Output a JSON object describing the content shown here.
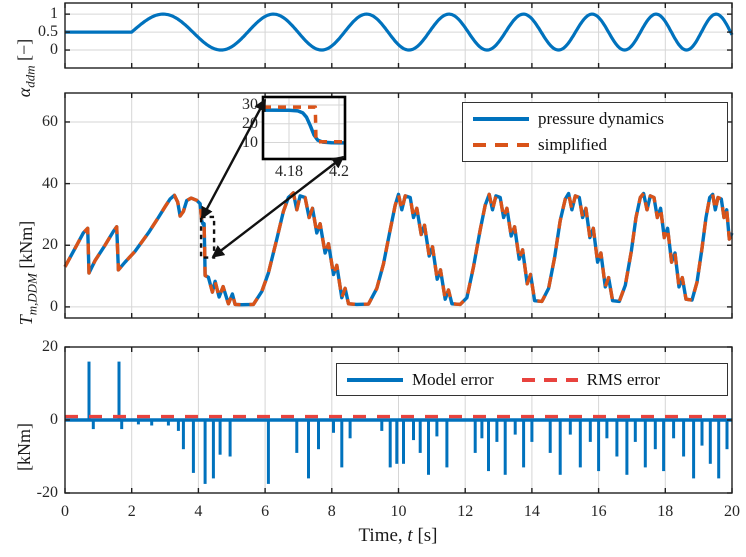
{
  "colors": {
    "blue": "#0072bd",
    "orange": "#d95319",
    "red": "#e8433e",
    "grid": "#d6d6d6",
    "frame": "#1f1f1f",
    "text": "#262626"
  },
  "labels": {
    "top_symbol": "α",
    "top_sub": "ddm",
    "top_unit": " [−]",
    "mid_symbol": "T",
    "mid_sub": "m,DDM",
    "mid_unit": " [kNm]",
    "bot_unit": "[kNm]",
    "x_pre": "Time, ",
    "x_var": "t",
    "x_unit": " [s]"
  },
  "chart_data": [
    {
      "id": "alpha",
      "type": "line",
      "title": "",
      "ylabel": "alpha_ddm [-]",
      "xlabel": "",
      "xlim": [
        0,
        20
      ],
      "ylim": [
        -0.5,
        1.31
      ],
      "grid": true,
      "xticks": [
        0,
        2,
        4,
        6,
        8,
        10,
        12,
        14,
        16,
        18,
        20
      ],
      "yticks": [
        {
          "v": 0,
          "label": "0"
        },
        {
          "v": 0.5,
          "label": "0.5"
        },
        {
          "v": 1,
          "label": "1"
        }
      ],
      "series": [
        {
          "name": "alpha_ddm",
          "style": "solid",
          "color_key": "blue",
          "model": "flat-then-chirp",
          "flat_value": 0.5,
          "flat_until": 2,
          "chirp": {
            "offset": 0.5,
            "amp": 0.5,
            "phase_a": 1.6085,
            "phase_b": 0.05655,
            "t_start": 2,
            "t_end": 20
          },
          "peaks_t": [
            3.35,
            6.55,
            9.35,
            11.75,
            13.9,
            15.9,
            17.8,
            19.5
          ],
          "peak_value": 1,
          "troughs_t": [
            4.95,
            8.0,
            10.55,
            12.85,
            14.95,
            16.85,
            18.7
          ],
          "trough_value": 0
        }
      ]
    },
    {
      "id": "torque",
      "type": "line",
      "title": "",
      "ylabel": "T_m,DDM [kNm]",
      "xlabel": "",
      "xlim": [
        0,
        20
      ],
      "ylim": [
        -3.6,
        69.4
      ],
      "grid": true,
      "legend_position": "northeast",
      "xticks": [
        0,
        2,
        4,
        6,
        8,
        10,
        12,
        14,
        16,
        18,
        20
      ],
      "yticks": [
        {
          "v": 0,
          "label": "0"
        },
        {
          "v": 20,
          "label": "20"
        },
        {
          "v": 40,
          "label": "40"
        },
        {
          "v": 60,
          "label": "60"
        }
      ],
      "series": [
        {
          "name": "pressure dynamics",
          "style": "solid",
          "color_key": "blue",
          "points": [
            [
              0,
              13
            ],
            [
              0.35,
              20
            ],
            [
              0.55,
              24
            ],
            [
              0.68,
              25.5
            ],
            [
              0.72,
              11
            ],
            [
              0.9,
              15
            ],
            [
              1.2,
              20
            ],
            [
              1.45,
              24.5
            ],
            [
              1.55,
              26
            ],
            [
              1.6,
              12
            ],
            [
              1.8,
              14.5
            ],
            [
              2.1,
              18
            ],
            [
              2.5,
              24
            ],
            [
              2.8,
              29
            ],
            [
              3.0,
              32.5
            ],
            [
              3.15,
              35
            ],
            [
              3.28,
              36.2
            ],
            [
              3.38,
              34
            ],
            [
              3.45,
              29.5
            ],
            [
              3.55,
              31
            ],
            [
              3.65,
              34.5
            ],
            [
              3.78,
              35.3
            ],
            [
              3.95,
              34.6
            ],
            [
              4.05,
              33.5
            ],
            [
              4.1,
              28
            ],
            [
              4.14,
              26.8
            ],
            [
              4.17,
              27
            ],
            [
              4.188,
              18
            ],
            [
              4.2,
              10.2
            ],
            [
              4.3,
              9.6
            ],
            [
              4.42,
              4.8
            ],
            [
              4.5,
              8.3
            ],
            [
              4.62,
              3.2
            ],
            [
              4.74,
              6.6
            ],
            [
              4.9,
              1
            ],
            [
              5.02,
              4.2
            ],
            [
              5.1,
              0.8
            ],
            [
              5.3,
              0.7
            ],
            [
              5.65,
              0.8
            ],
            [
              5.9,
              5
            ],
            [
              6.1,
              11
            ],
            [
              6.35,
              22
            ],
            [
              6.55,
              31
            ],
            [
              6.7,
              35.5
            ],
            [
              6.85,
              37
            ],
            [
              6.95,
              31.5
            ],
            [
              7.05,
              36
            ],
            [
              7.2,
              35.5
            ],
            [
              7.32,
              29
            ],
            [
              7.42,
              32
            ],
            [
              7.55,
              24
            ],
            [
              7.65,
              27
            ],
            [
              7.8,
              17.5
            ],
            [
              7.9,
              20.5
            ],
            [
              8.05,
              10.5
            ],
            [
              8.15,
              13.5
            ],
            [
              8.3,
              3
            ],
            [
              8.4,
              6
            ],
            [
              8.5,
              1
            ],
            [
              8.75,
              0.8
            ],
            [
              9.1,
              0.9
            ],
            [
              9.35,
              6
            ],
            [
              9.55,
              14
            ],
            [
              9.75,
              25
            ],
            [
              9.9,
              33
            ],
            [
              10.0,
              36.5
            ],
            [
              10.1,
              31.5
            ],
            [
              10.2,
              36
            ],
            [
              10.35,
              35.5
            ],
            [
              10.45,
              29
            ],
            [
              10.55,
              32
            ],
            [
              10.68,
              23.5
            ],
            [
              10.78,
              26.5
            ],
            [
              10.92,
              16.5
            ],
            [
              11.02,
              19.5
            ],
            [
              11.16,
              9
            ],
            [
              11.26,
              12
            ],
            [
              11.4,
              2.5
            ],
            [
              11.5,
              5.5
            ],
            [
              11.6,
              1
            ],
            [
              11.85,
              0.8
            ],
            [
              12.05,
              3
            ],
            [
              12.25,
              13
            ],
            [
              12.45,
              25
            ],
            [
              12.6,
              33
            ],
            [
              12.72,
              36.5
            ],
            [
              12.82,
              31.5
            ],
            [
              12.92,
              36
            ],
            [
              13.05,
              35.5
            ],
            [
              13.15,
              29
            ],
            [
              13.25,
              32
            ],
            [
              13.38,
              23
            ],
            [
              13.48,
              26
            ],
            [
              13.62,
              15.5
            ],
            [
              13.72,
              18.5
            ],
            [
              13.86,
              7.5
            ],
            [
              13.96,
              10.5
            ],
            [
              14.08,
              2
            ],
            [
              14.3,
              1.8
            ],
            [
              14.5,
              6
            ],
            [
              14.68,
              16
            ],
            [
              14.85,
              28
            ],
            [
              15.0,
              35
            ],
            [
              15.1,
              36.8
            ],
            [
              15.2,
              31.5
            ],
            [
              15.3,
              36
            ],
            [
              15.42,
              35.5
            ],
            [
              15.52,
              29
            ],
            [
              15.62,
              32
            ],
            [
              15.74,
              22.5
            ],
            [
              15.84,
              25.5
            ],
            [
              15.97,
              14.5
            ],
            [
              16.07,
              17.5
            ],
            [
              16.2,
              6.5
            ],
            [
              16.3,
              9.5
            ],
            [
              16.42,
              2
            ],
            [
              16.62,
              1.8
            ],
            [
              16.8,
              7
            ],
            [
              16.98,
              18
            ],
            [
              17.12,
              29
            ],
            [
              17.25,
              35.5
            ],
            [
              17.35,
              36.8
            ],
            [
              17.45,
              31.5
            ],
            [
              17.55,
              36
            ],
            [
              17.66,
              35.5
            ],
            [
              17.76,
              29
            ],
            [
              17.86,
              32
            ],
            [
              17.97,
              22.5
            ],
            [
              18.07,
              25.5
            ],
            [
              18.19,
              14.5
            ],
            [
              18.29,
              17.5
            ],
            [
              18.41,
              6.5
            ],
            [
              18.51,
              9.5
            ],
            [
              18.62,
              2.5
            ],
            [
              18.8,
              2.2
            ],
            [
              18.95,
              8
            ],
            [
              19.1,
              19
            ],
            [
              19.22,
              29
            ],
            [
              19.33,
              35.5
            ],
            [
              19.42,
              36.5
            ],
            [
              19.5,
              31.5
            ],
            [
              19.58,
              35.5
            ],
            [
              19.68,
              35
            ],
            [
              19.76,
              29
            ],
            [
              19.84,
              31.5
            ],
            [
              19.92,
              22
            ],
            [
              20,
              24
            ]
          ]
        },
        {
          "name": "simplified",
          "style": "dashed",
          "color_key": "orange",
          "overlaps_series": "pressure dynamics"
        }
      ],
      "callout_rect": {
        "t0": 4.08,
        "t1": 4.47,
        "T0": 16,
        "T1": 29.2
      },
      "inset": {
        "xlim": [
          4.1696,
          4.2024
        ],
        "ylim": [
          1.2,
          34.3
        ],
        "xticks": [
          {
            "v": 4.18,
            "label": "4.18"
          },
          {
            "v": 4.2,
            "label": "4.2"
          }
        ],
        "yticks": [
          {
            "v": 10,
            "label": "10"
          },
          {
            "v": 20,
            "label": "20"
          },
          {
            "v": 30,
            "label": "30"
          }
        ],
        "series": [
          {
            "name": "pressure dynamics",
            "style": "solid",
            "color_key": "blue",
            "points": [
              [
                4.1696,
                27.3
              ],
              [
                4.18,
                27.2
              ],
              [
                4.1835,
                26.9
              ],
              [
                4.1855,
                25.8
              ],
              [
                4.187,
                23.5
              ],
              [
                4.1885,
                19
              ],
              [
                4.19,
                14
              ],
              [
                4.1915,
                11.3
              ],
              [
                4.1935,
                10.2
              ],
              [
                4.197,
                9.9
              ],
              [
                4.2024,
                9.8
              ]
            ]
          },
          {
            "name": "simplified",
            "style": "dashed",
            "color_key": "orange",
            "points": [
              [
                4.1696,
                28.9
              ],
              [
                4.1905,
                28.9
              ],
              [
                4.1908,
                10.4
              ],
              [
                4.2024,
                10.4
              ]
            ]
          }
        ]
      }
    },
    {
      "id": "error",
      "type": "line",
      "title": "",
      "ylabel": "[kNm]",
      "xlabel": "Time, t [s]",
      "xlim": [
        0,
        20
      ],
      "ylim": [
        -20,
        20
      ],
      "grid": true,
      "legend_position": "northeast",
      "xticks": [
        0,
        2,
        4,
        6,
        8,
        10,
        12,
        14,
        16,
        18,
        20
      ],
      "yticks": [
        {
          "v": -20,
          "label": "-20"
        },
        {
          "v": 0,
          "label": "0"
        },
        {
          "v": 20,
          "label": "20"
        }
      ],
      "series": [
        {
          "name": "Model error",
          "style": "solid",
          "color_key": "blue",
          "baseline": 0,
          "spikes": [
            [
              0.72,
              16
            ],
            [
              0.85,
              -2.5
            ],
            [
              1.62,
              16
            ],
            [
              1.7,
              -2.5
            ],
            [
              2.2,
              -1.2
            ],
            [
              2.6,
              -1.5
            ],
            [
              3.1,
              -1.5
            ],
            [
              3.4,
              -3
            ],
            [
              3.55,
              -8
            ],
            [
              3.85,
              -14.5
            ],
            [
              4.2,
              -17.5
            ],
            [
              4.45,
              -16
            ],
            [
              4.65,
              -9.5
            ],
            [
              4.95,
              -10
            ],
            [
              6.1,
              -17.5
            ],
            [
              6.95,
              -9
            ],
            [
              7.3,
              -16
            ],
            [
              7.6,
              -8
            ],
            [
              8.05,
              -3.5
            ],
            [
              8.3,
              -13
            ],
            [
              8.55,
              -5
            ],
            [
              9.5,
              -3
            ],
            [
              9.75,
              -13
            ],
            [
              9.95,
              -12
            ],
            [
              10.15,
              -12
            ],
            [
              10.45,
              -5.5
            ],
            [
              10.65,
              -9
            ],
            [
              10.9,
              -15
            ],
            [
              11.15,
              -4.5
            ],
            [
              11.45,
              -13
            ],
            [
              12.3,
              -9
            ],
            [
              12.5,
              -5
            ],
            [
              12.7,
              -14
            ],
            [
              12.95,
              -6
            ],
            [
              13.2,
              -15
            ],
            [
              13.5,
              -4
            ],
            [
              13.75,
              -13
            ],
            [
              14.0,
              -6
            ],
            [
              14.55,
              -9
            ],
            [
              14.85,
              -15
            ],
            [
              15.15,
              -4
            ],
            [
              15.45,
              -13
            ],
            [
              15.75,
              -6
            ],
            [
              16.0,
              -14
            ],
            [
              16.25,
              -5
            ],
            [
              16.55,
              -10
            ],
            [
              16.85,
              -15
            ],
            [
              17.1,
              -6
            ],
            [
              17.4,
              -13
            ],
            [
              17.7,
              -8
            ],
            [
              17.95,
              -14
            ],
            [
              18.25,
              -5
            ],
            [
              18.55,
              -10
            ],
            [
              18.85,
              -16
            ],
            [
              19.1,
              -7
            ],
            [
              19.35,
              -12
            ],
            [
              19.6,
              -16
            ],
            [
              19.85,
              -8
            ]
          ]
        },
        {
          "name": "RMS error",
          "style": "dashed",
          "color_key": "red",
          "constant_value": 0.95
        }
      ]
    }
  ]
}
